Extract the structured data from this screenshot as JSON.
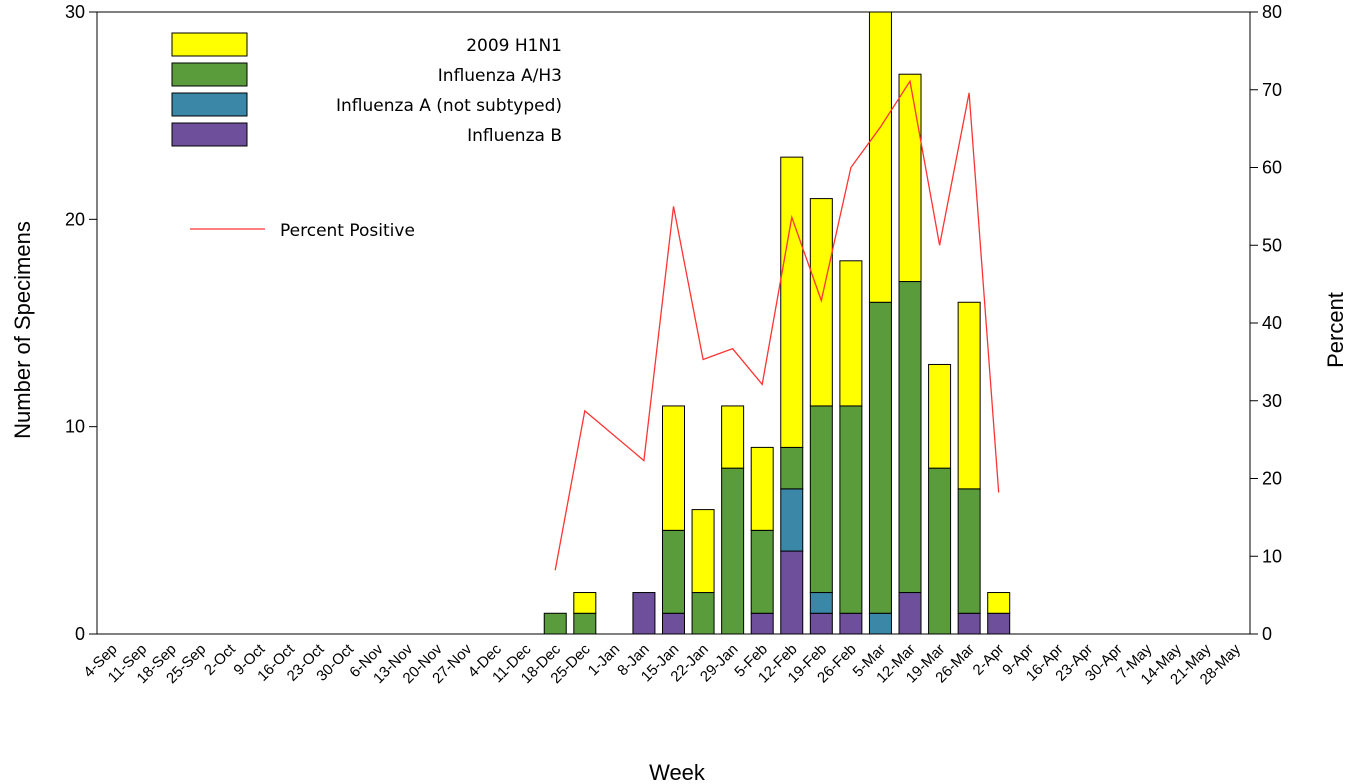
{
  "chart_data": {
    "type": "bar",
    "stacked": true,
    "title": "",
    "xlabel": "Week",
    "ylabel": "Number of Specimens",
    "y2label": "Percent",
    "ylim": [
      0,
      30
    ],
    "y2lim": [
      0,
      80
    ],
    "yticks": [
      0,
      10,
      20,
      30
    ],
    "y2ticks": [
      0,
      10,
      20,
      30,
      40,
      50,
      60,
      70,
      80
    ],
    "grid": false,
    "legend_position": "top-left",
    "categories": [
      "4-Sep",
      "11-Sep",
      "18-Sep",
      "25-Sep",
      "2-Oct",
      "9-Oct",
      "16-Oct",
      "23-Oct",
      "30-Oct",
      "6-Nov",
      "13-Nov",
      "20-Nov",
      "27-Nov",
      "4-Dec",
      "11-Dec",
      "18-Dec",
      "25-Dec",
      "1-Jan",
      "8-Jan",
      "15-Jan",
      "22-Jan",
      "29-Jan",
      "5-Feb",
      "12-Feb",
      "19-Feb",
      "26-Feb",
      "5-Mar",
      "12-Mar",
      "19-Mar",
      "26-Mar",
      "2-Apr",
      "9-Apr",
      "16-Apr",
      "23-Apr",
      "30-Apr",
      "7-May",
      "14-May",
      "21-May",
      "28-May"
    ],
    "series": [
      {
        "name": "Influenza B",
        "color": "#6d4f9c",
        "values": [
          0,
          0,
          0,
          0,
          0,
          0,
          0,
          0,
          0,
          0,
          0,
          0,
          0,
          0,
          0,
          0,
          0,
          0,
          2,
          1,
          0,
          0,
          1,
          4,
          1,
          1,
          0,
          2,
          0,
          1,
          1,
          0,
          0,
          0,
          0,
          0,
          0,
          0,
          0
        ]
      },
      {
        "name": "Influenza A (not subtyped)",
        "color": "#3a87a8",
        "values": [
          0,
          0,
          0,
          0,
          0,
          0,
          0,
          0,
          0,
          0,
          0,
          0,
          0,
          0,
          0,
          0,
          0,
          0,
          0,
          0,
          0,
          0,
          0,
          3,
          1,
          0,
          1,
          0,
          0,
          0,
          0,
          0,
          0,
          0,
          0,
          0,
          0,
          0,
          0
        ]
      },
      {
        "name": "Influenza A/H3",
        "color": "#5a9b3c",
        "values": [
          0,
          0,
          0,
          0,
          0,
          0,
          0,
          0,
          0,
          0,
          0,
          0,
          0,
          0,
          0,
          1,
          1,
          0,
          0,
          4,
          2,
          8,
          4,
          2,
          9,
          10,
          15,
          15,
          8,
          6,
          0,
          0,
          0,
          0,
          0,
          0,
          0,
          0,
          0
        ]
      },
      {
        "name": "2009 H1N1",
        "color": "#ffff00",
        "values": [
          0,
          0,
          0,
          0,
          0,
          0,
          0,
          0,
          0,
          0,
          0,
          0,
          0,
          0,
          0,
          0,
          1,
          0,
          0,
          6,
          4,
          3,
          4,
          14,
          10,
          7,
          14,
          10,
          5,
          9,
          1,
          0,
          0,
          0,
          0,
          0,
          0,
          0,
          0
        ]
      }
    ],
    "legend_order": [
      "2009 H1N1",
      "Influenza A/H3",
      "Influenza A (not subtyped)",
      "Influenza B"
    ],
    "line_series": {
      "name": "Percent Positive",
      "color": "#ff3333",
      "axis": "right",
      "values": [
        null,
        null,
        null,
        null,
        null,
        null,
        null,
        null,
        null,
        null,
        null,
        null,
        null,
        null,
        null,
        8.2,
        28.7,
        null,
        22.3,
        55.0,
        35.3,
        36.7,
        32.1,
        53.6,
        42.9,
        60.0,
        65.2,
        71.1,
        50.0,
        69.6,
        18.2,
        null,
        null,
        null,
        null,
        null,
        null,
        null,
        null
      ]
    }
  }
}
